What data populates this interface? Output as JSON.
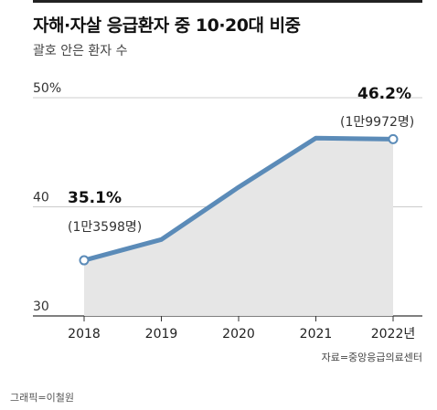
{
  "title": "자해·자살 응급환자 중 10·20대 비중",
  "subtitle": "괄호 안은 환자 수",
  "source": "자료=중앙응급의료센터",
  "credit": "그래픽=이철원",
  "colors": {
    "line": "#5b8bb8",
    "area": "#e6e6e6",
    "grid": "#cccccc",
    "axis": "#333333"
  },
  "chart_data": {
    "type": "area",
    "title": "자해·자살 응급환자 중 10·20대 비중",
    "xlabel": "",
    "ylabel": "",
    "categories": [
      "2018",
      "2019",
      "2020",
      "2021",
      "2022년"
    ],
    "values": [
      35.1,
      37.0,
      41.8,
      46.3,
      46.2
    ],
    "ylim": [
      30,
      50
    ],
    "yticks": [
      {
        "value": 30,
        "label": "30"
      },
      {
        "value": 40,
        "label": "40"
      },
      {
        "value": 50,
        "label": "50%"
      }
    ],
    "grid": true,
    "annotations": [
      {
        "index": 0,
        "value_label": "35.1%",
        "count_label": "(1만3598명)"
      },
      {
        "index": 4,
        "value_label": "46.2%",
        "count_label": "(1만9972명)"
      }
    ]
  }
}
